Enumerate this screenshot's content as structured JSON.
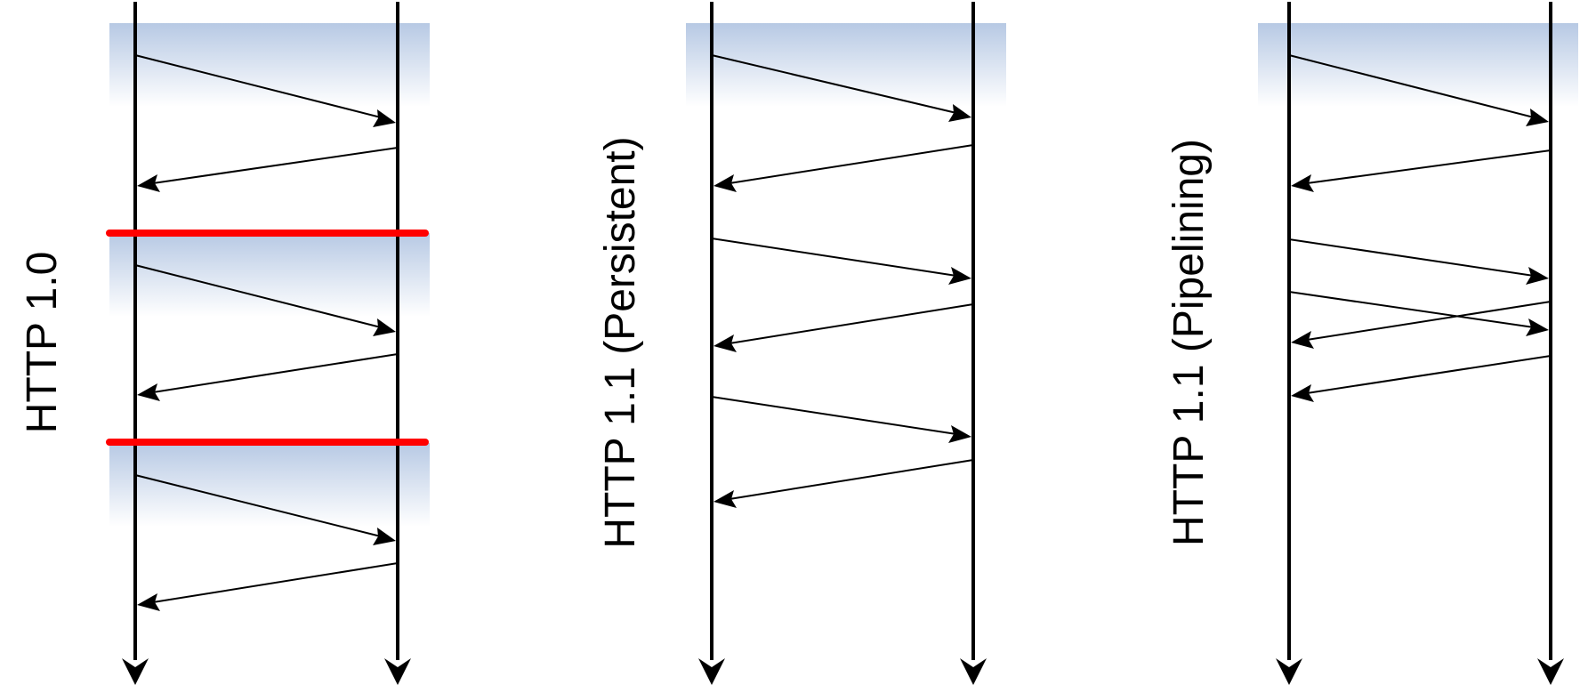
{
  "colors": {
    "timeline": "#000000",
    "message_arrow": "#000000",
    "connection_separator": "#ff0000",
    "connection_shade_top": "#b7c9e4",
    "connection_shade_bottom": "#ffffff",
    "background": "#ffffff"
  },
  "panels": [
    {
      "id": "http10",
      "label": "HTTP 1.0"
    },
    {
      "id": "http11-persistent",
      "label": "HTTP 1.1 (Persistent)"
    },
    {
      "id": "http11-pipelining",
      "label": "HTTP 1.1 (Pipelining)"
    }
  ]
}
